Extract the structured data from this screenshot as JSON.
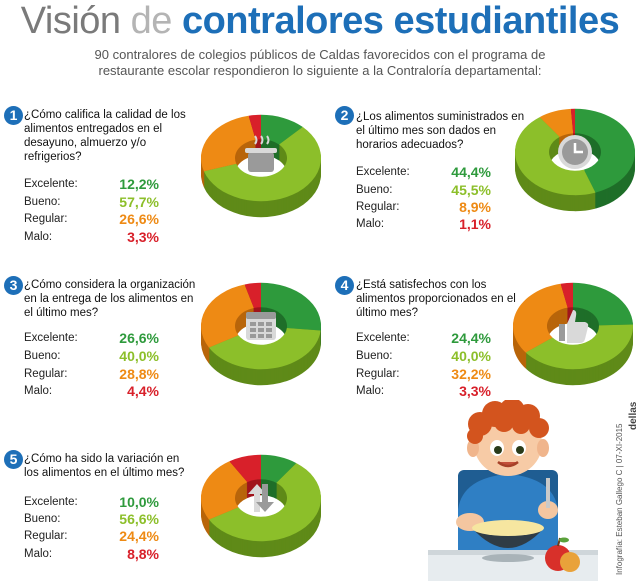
{
  "title": {
    "part1": "Visión ",
    "part2": "de ",
    "part3": "contralores estudiantiles"
  },
  "subtitle": "90 contralores de colegios públicos de Caldas favorecidos con el programa de restaurante escolar respondieron lo siguiente a la Contraloría departamental:",
  "colors": {
    "excelente": "#2e9a3c",
    "bueno": "#8cbf2a",
    "regular": "#ee8a14",
    "malo": "#d8202a",
    "accent": "#1d6fb8"
  },
  "chart_data": [
    {
      "type": "pie",
      "number": "1",
      "icon": "cooking-pot-icon",
      "title": "¿Cómo califica la calidad de los alimentos entregados en el desayuno, almuerzo y/o refrigerios?",
      "categories": [
        "Excelente:",
        "Bueno:",
        "Regular:",
        "Malo:"
      ],
      "values": [
        12.2,
        57.7,
        26.6,
        3.3
      ],
      "labels": [
        "12,2%",
        "57,7%",
        "26,6%",
        "3,3%"
      ]
    },
    {
      "type": "pie",
      "number": "2",
      "icon": "clock-icon",
      "title": "¿Los alimentos suministrados en el último mes son dados en horarios adecuados?",
      "categories": [
        "Excelente:",
        "Bueno:",
        "Regular:",
        "Malo:"
      ],
      "values": [
        44.4,
        45.5,
        8.9,
        1.1
      ],
      "labels": [
        "44,4%",
        "45,5%",
        "8,9%",
        "1,1%"
      ]
    },
    {
      "type": "pie",
      "number": "3",
      "icon": "calendar-icon",
      "title": "¿Cómo considera la organización en la entrega de los alimentos en el último mes?",
      "categories": [
        "Excelente:",
        "Bueno:",
        "Regular:",
        "Malo:"
      ],
      "values": [
        26.6,
        40.0,
        28.8,
        4.4
      ],
      "labels": [
        "26,6%",
        "40,0%",
        "28,8%",
        "4,4%"
      ]
    },
    {
      "type": "pie",
      "number": "4",
      "icon": "thumbs-up-icon",
      "title": "¿Está satisfechos con los alimentos proporcionados en el último mes?",
      "categories": [
        "Excelente:",
        "Bueno:",
        "Regular:",
        "Malo:"
      ],
      "values": [
        24.4,
        40.0,
        32.2,
        3.3
      ],
      "labels": [
        "24,4%",
        "40,0%",
        "32,2%",
        "3,3%"
      ]
    },
    {
      "type": "pie",
      "number": "5",
      "icon": "up-down-arrows-icon",
      "title": "¿Cómo ha sido la variación en los alimentos en el último mes?",
      "categories": [
        "Excelente:",
        "Bueno:",
        "Regular:",
        "Malo:"
      ],
      "values": [
        10.0,
        56.6,
        24.4,
        8.8
      ],
      "labels": [
        "10,0%",
        "56,6%",
        "24,4%",
        "8,8%"
      ]
    }
  ],
  "credit": "Infografía: Esteban Gallego C | 07-XI-2015",
  "logo": "dellas"
}
